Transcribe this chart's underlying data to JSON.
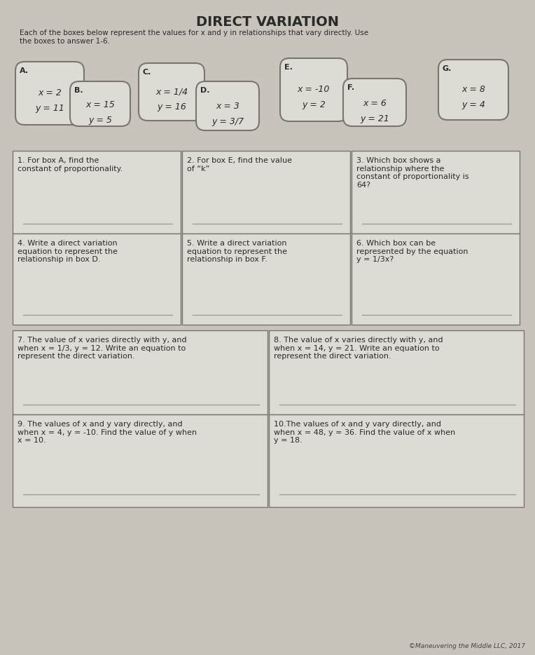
{
  "title": "DIRECT VARIATION",
  "subtitle": "Each of the boxes below represent the values for x and y in relationships that vary directly. Use\nthe boxes to answer 1-6.",
  "bg_color": "#c8c4bc",
  "box_bg": "#dedad4",
  "boxes": [
    {
      "label": "A.",
      "lines": [
        "x = 2",
        "y = 11"
      ]
    },
    {
      "label": "B.",
      "lines": [
        "x = 15",
        "y = 5"
      ]
    },
    {
      "label": "C.",
      "lines": [
        "x = 1/4",
        "y = 16"
      ]
    },
    {
      "label": "D.",
      "lines": [
        "x = 3",
        "y = 3/7"
      ]
    },
    {
      "label": "E.",
      "lines": [
        "x = -10",
        "y = 2"
      ]
    },
    {
      "label": "F.",
      "lines": [
        "x = 6",
        "y = 21"
      ]
    },
    {
      "label": "G.",
      "lines": [
        "x = 8",
        "y = 4"
      ]
    }
  ],
  "questions_top": [
    {
      "num": "1. ",
      "text": "For box A, find the\nconstant of proportionality."
    },
    {
      "num": "2. ",
      "text": "For box E, find the value\nof “k”"
    },
    {
      "num": "3. ",
      "text": "Which box shows a\nrelationship where the\nconstant of proportionality is\n64?"
    }
  ],
  "questions_mid": [
    {
      "num": "4. ",
      "text": "Write a direct variation\nequation to represent the\nrelationship in box D."
    },
    {
      "num": "5. ",
      "text": "Write a direct variation\nequation to represent the\nrelationship in box F."
    },
    {
      "num": "6. ",
      "text": "Which box can be\nrepresented by the equation\ny = 1/3x?"
    }
  ],
  "questions_wide1": [
    {
      "num": "7. ",
      "text": "The value of x varies directly with y, and\nwhen x = 1/3, y = 12. Write an equation to\nrepresent the direct variation."
    },
    {
      "num": "8. ",
      "text": "The value of x varies directly with y, and\nwhen x = 14, y = 21. Write an equation to\nrepresent the direct variation."
    }
  ],
  "questions_wide2": [
    {
      "num": "9. ",
      "text": "The values of x and y vary directly, and\nwhen x = 4, y = -10. Find the value of y when\nx = 10."
    },
    {
      "num": "10.",
      "text": "The values of x and y vary directly, and\nwhen x = 48, y = 36. Find the value of x when\ny = 18."
    }
  ],
  "footer": "©Maneuvering the Middle LLC, 2017",
  "line_color": "#999990",
  "text_color": "#2a2a2a",
  "border_color": "#777770"
}
